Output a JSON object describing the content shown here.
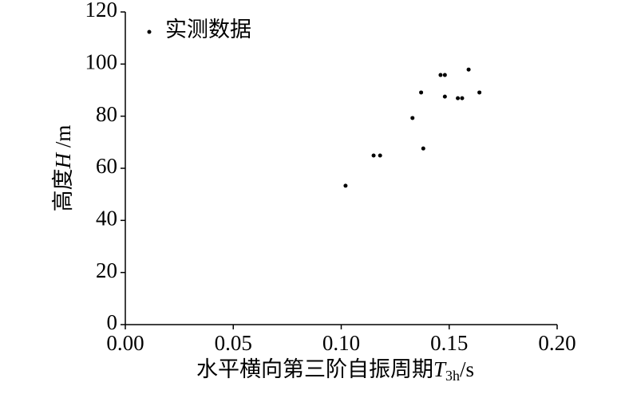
{
  "chart_data": {
    "type": "scatter",
    "xlabel": {
      "text": "水平横向第三阶自振周期",
      "var": "T",
      "sub": "3h",
      "unit": "/s"
    },
    "ylabel": {
      "text": "高度",
      "var": "H",
      "unit": " /m"
    },
    "series": [
      {
        "name": "实测数据",
        "color": "#000000",
        "x": [
          0.102,
          0.115,
          0.118,
          0.133,
          0.137,
          0.138,
          0.146,
          0.148,
          0.148,
          0.154,
          0.156,
          0.159,
          0.164
        ],
        "values": [
          53.3,
          64.9,
          64.9,
          79.3,
          89.1,
          67.6,
          95.8,
          95.8,
          87.5,
          86.9,
          86.9,
          97.9,
          89.1
        ]
      }
    ],
    "xlim": [
      0,
      0.2
    ],
    "xticks": [
      {
        "value": 0,
        "label": "0.00"
      },
      {
        "value": 0.05,
        "label": "0.05"
      },
      {
        "value": 0.1,
        "label": "0.10"
      },
      {
        "value": 0.15,
        "label": "0.15"
      },
      {
        "value": 0.2,
        "label": "0.20"
      }
    ],
    "ylim": [
      0,
      120
    ],
    "yticks": [
      0,
      20,
      40,
      60,
      80,
      100,
      120
    ],
    "grid": false,
    "legend": "upper left"
  }
}
